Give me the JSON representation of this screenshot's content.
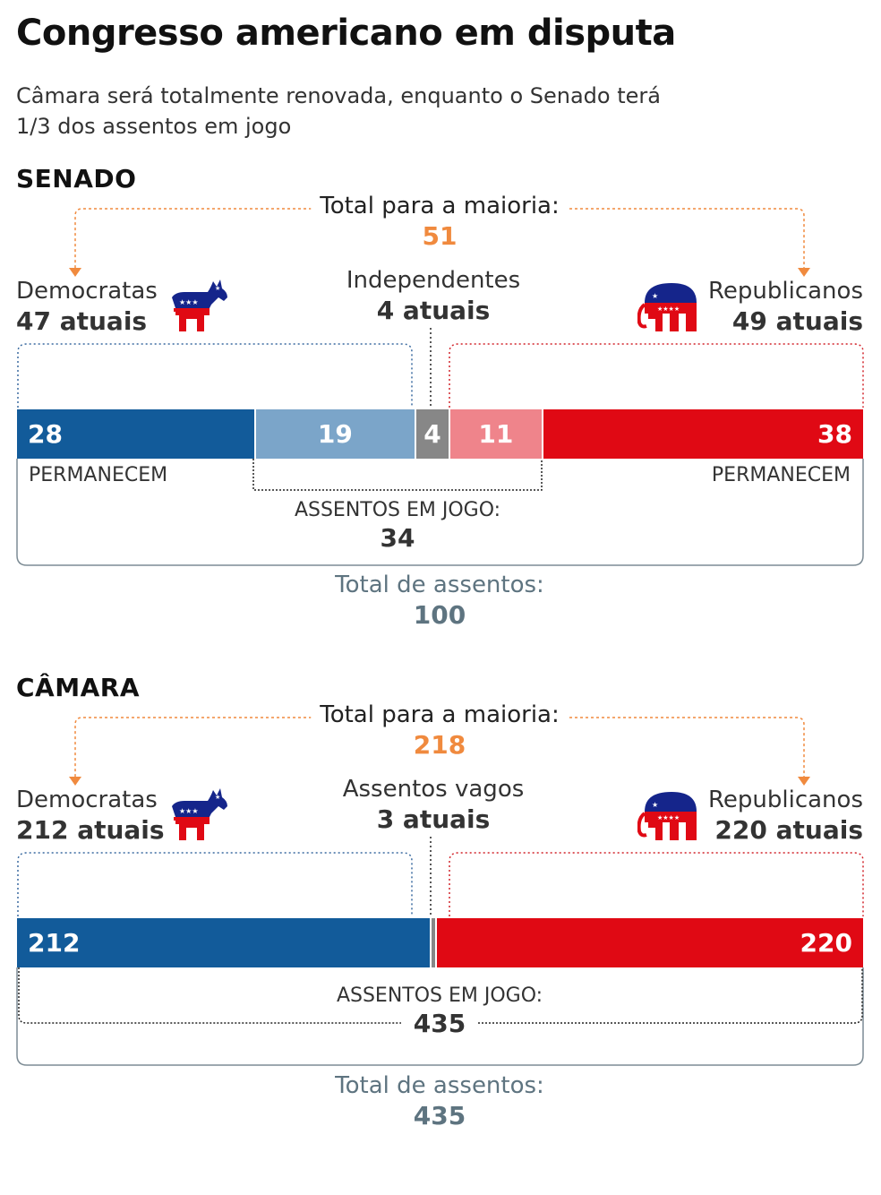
{
  "title": "Congresso americano em disputa",
  "subtitle": "Câmara será totalmente renovada, enquanto o Senado terá 1/3 dos assentos em jogo",
  "colors": {
    "democrat": "#125b9a",
    "democrat_light": "#7ba5c9",
    "independent": "#878787",
    "republican_light": "#ef848b",
    "republican": "#e00914",
    "majority": "#f08a3e",
    "total": "#5e7480"
  },
  "senate": {
    "heading": "SENADO",
    "majority_label": "Total para a maioria:",
    "majority_value": "51",
    "democrats": {
      "name": "Democratas",
      "count": "47 atuais",
      "icon": "donkey-icon"
    },
    "independents": {
      "name": "Independentes",
      "count": "4 atuais"
    },
    "republicans": {
      "name": "Republicanos",
      "count": "49 atuais",
      "icon": "elephant-icon"
    },
    "bar": [
      {
        "key": "dem_remain",
        "label": "28",
        "value": 28
      },
      {
        "key": "dem_play",
        "label": "19",
        "value": 19
      },
      {
        "key": "ind",
        "label": "4",
        "value": 4
      },
      {
        "key": "rep_play",
        "label": "11",
        "value": 11
      },
      {
        "key": "rep_remain",
        "label": "38",
        "value": 38
      }
    ],
    "remain_left": "PERMANECEM",
    "remain_right": "PERMANECEM",
    "in_play_label": "ASSENTOS EM JOGO:",
    "in_play_value": "34",
    "total_label": "Total de assentos:",
    "total_value": "100"
  },
  "house": {
    "heading": "CÂMARA",
    "majority_label": "Total para a maioria:",
    "majority_value": "218",
    "democrats": {
      "name": "Democratas",
      "count": "212 atuais",
      "icon": "donkey-icon"
    },
    "vacant": {
      "name": "Assentos vagos",
      "count": "3 atuais"
    },
    "republicans": {
      "name": "Republicanos",
      "count": "220 atuais",
      "icon": "elephant-icon"
    },
    "bar": [
      {
        "key": "dem",
        "label": "212",
        "value": 212
      },
      {
        "key": "vacant",
        "label": "",
        "value": 3
      },
      {
        "key": "rep",
        "label": "220",
        "value": 220
      }
    ],
    "in_play_label": "ASSENTOS EM JOGO:",
    "in_play_value": "435",
    "total_label": "Total de assentos:",
    "total_value": "435"
  }
}
